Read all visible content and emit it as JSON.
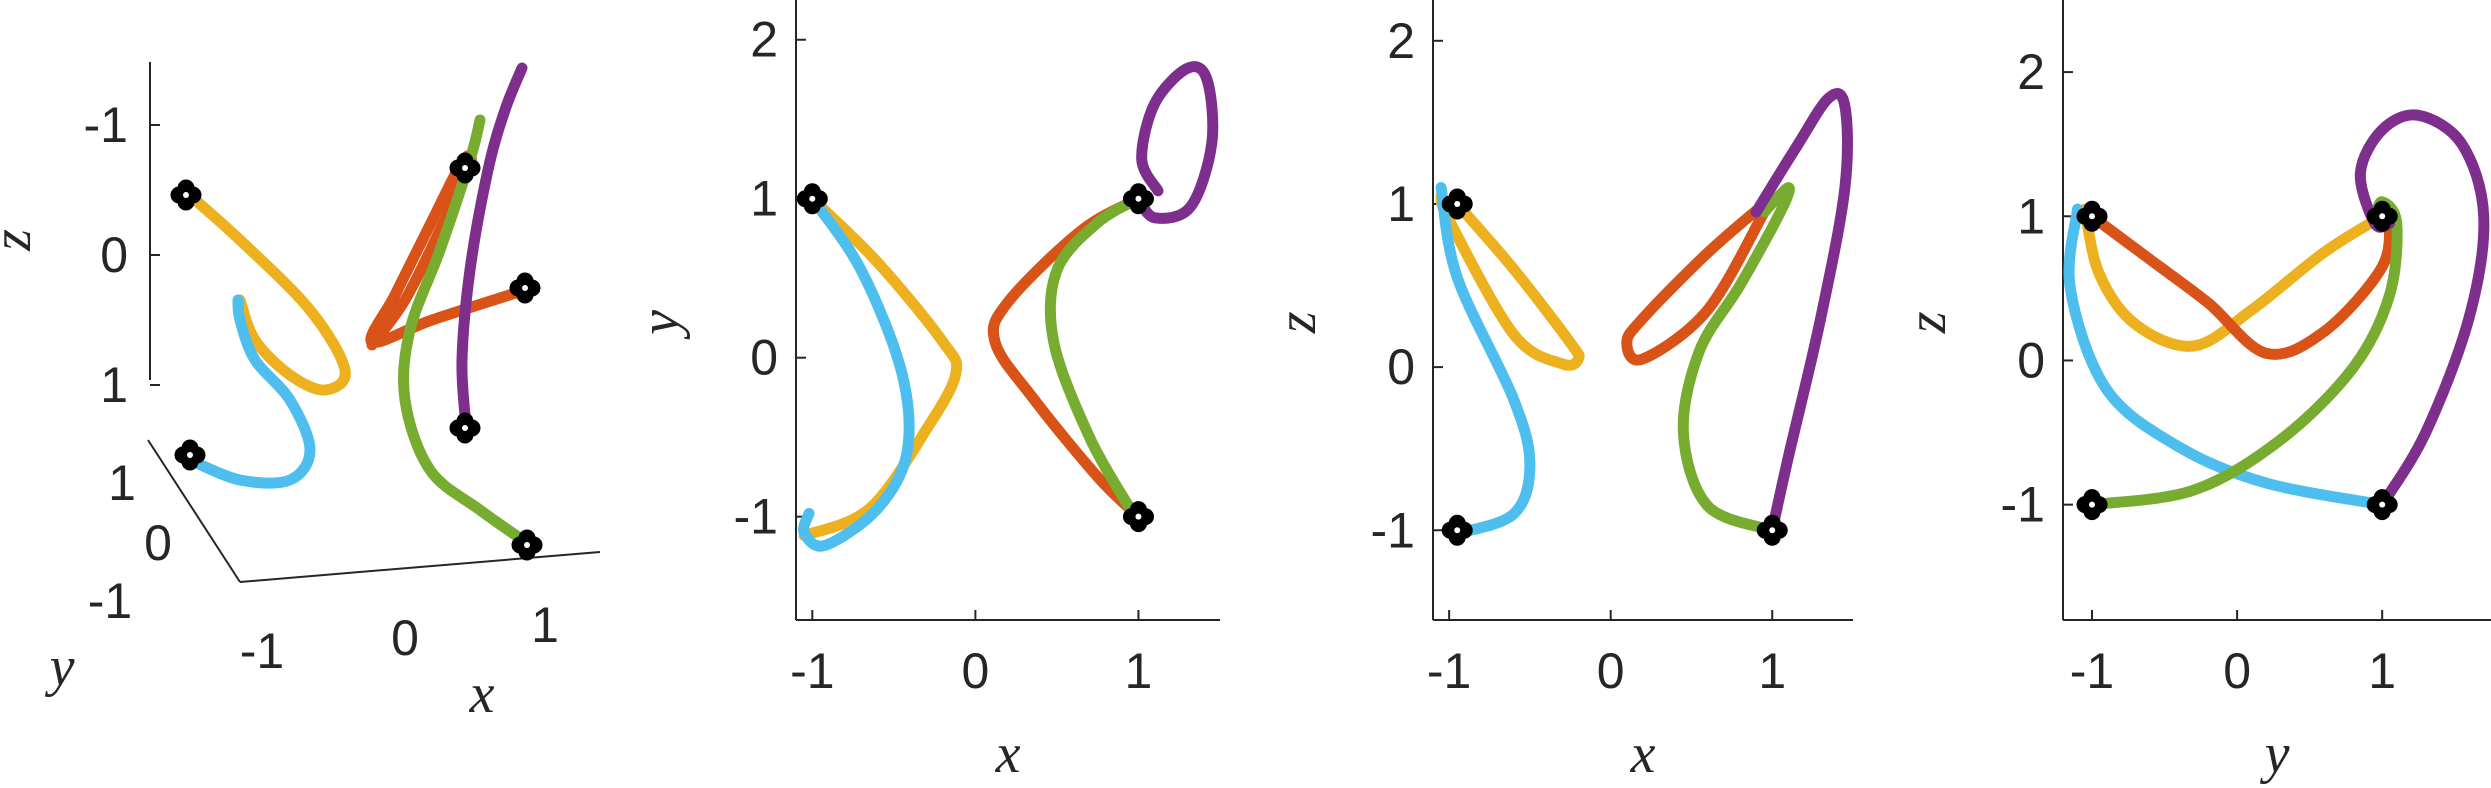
{
  "colors": {
    "orange": "#EDB120",
    "red": "#D95319",
    "purple": "#7E2F8E",
    "green": "#77AC30",
    "cyan": "#4DBEEE",
    "marker": "#000000",
    "axis": "#262626"
  },
  "chart_data": [
    {
      "type": "line",
      "view": "3d",
      "xlabel": "x",
      "ylabel": "y",
      "zlabel": "z",
      "xticks": [
        "-1",
        "0",
        "1"
      ],
      "yticks": [
        "-1",
        "0",
        "1"
      ],
      "zticks": [
        "-1",
        "0",
        "1"
      ],
      "series": [
        {
          "color": "orange",
          "points": [
            [
              -1,
              1,
              1
            ],
            [
              -0.6,
              0.6,
              0.6
            ],
            [
              -0.2,
              0.1,
              0.1
            ],
            [
              -0.4,
              -0.4,
              -0.1
            ],
            [
              -0.6,
              -0.8,
              0.2
            ],
            [
              -0.9,
              -1.05,
              0.7
            ]
          ]
        },
        {
          "color": "cyan",
          "points": [
            [
              -1,
              -1,
              -1
            ],
            [
              -0.6,
              -0.6,
              -0.9
            ],
            [
              -0.3,
              -0.2,
              -0.7
            ],
            [
              -0.5,
              0.3,
              -0.2
            ],
            [
              -0.8,
              0.8,
              0.4
            ],
            [
              -1.0,
              1.1,
              0.95
            ]
          ]
        },
        {
          "color": "red",
          "points": [
            [
              1,
              1,
              1
            ],
            [
              0.5,
              0.4,
              0.5
            ],
            [
              0.15,
              0.1,
              0.1
            ],
            [
              0.4,
              0.2,
              0.4
            ],
            [
              0.8,
              0.6,
              0.7
            ],
            [
              1,
              -1,
              1
            ]
          ]
        },
        {
          "color": "green",
          "points": [
            [
              1,
              -1,
              -1
            ],
            [
              0.6,
              -0.6,
              -0.6
            ],
            [
              0.4,
              0.2,
              -0.3
            ],
            [
              0.6,
              0.8,
              0.4
            ],
            [
              1.0,
              1.1,
              0.9
            ],
            [
              1.1,
              1.2,
              1.1
            ]
          ]
        },
        {
          "color": "purple",
          "points": [
            [
              1,
              -1,
              -1
            ],
            [
              1.1,
              0.0,
              0.0
            ],
            [
              1.3,
              0.9,
              0.9
            ],
            [
              1.5,
              1.5,
              1.5
            ]
          ]
        }
      ],
      "markers": [
        [
          -1,
          1,
          1
        ],
        [
          -1,
          -1,
          -1
        ],
        [
          1,
          1,
          1
        ],
        [
          1,
          -1,
          1
        ],
        [
          1,
          -1,
          -1
        ],
        [
          1,
          1,
          -1
        ]
      ]
    },
    {
      "type": "line",
      "view": "xy",
      "xlabel": "x",
      "ylabel": "y",
      "xlim": [
        -1.1,
        1.5
      ],
      "ylim": [
        -1.65,
        2.25
      ],
      "xticks": [
        -1,
        0,
        1
      ],
      "yticks": [
        -1,
        0,
        1,
        2
      ],
      "series": [
        {
          "color": "orange",
          "points": [
            [
              -1,
              1
            ],
            [
              -0.6,
              0.6
            ],
            [
              -0.2,
              0.1
            ],
            [
              -0.12,
              -0.1
            ],
            [
              -0.3,
              -0.45
            ],
            [
              -0.65,
              -0.95
            ],
            [
              -1.05,
              -1.12
            ]
          ]
        },
        {
          "color": "cyan",
          "points": [
            [
              -1,
              1
            ],
            [
              -0.7,
              0.55
            ],
            [
              -0.45,
              -0.1
            ],
            [
              -0.42,
              -0.6
            ],
            [
              -0.6,
              -0.95
            ],
            [
              -0.92,
              -1.18
            ],
            [
              -1.05,
              -1.1
            ],
            [
              -1.02,
              -0.98
            ]
          ]
        },
        {
          "color": "red",
          "points": [
            [
              1,
              1
            ],
            [
              0.65,
              0.8
            ],
            [
              0.2,
              0.35
            ],
            [
              0.12,
              0.1
            ],
            [
              0.35,
              -0.25
            ],
            [
              0.75,
              -0.75
            ],
            [
              1,
              -1
            ]
          ]
        },
        {
          "color": "green",
          "points": [
            [
              1,
              1
            ],
            [
              0.75,
              0.85
            ],
            [
              0.5,
              0.55
            ],
            [
              0.48,
              0.1
            ],
            [
              0.7,
              -0.5
            ],
            [
              0.95,
              -0.95
            ],
            [
              1,
              -1
            ]
          ]
        },
        {
          "color": "purple",
          "points": [
            [
              1,
              1
            ],
            [
              1.1,
              0.88
            ],
            [
              1.32,
              0.95
            ],
            [
              1.45,
              1.35
            ],
            [
              1.42,
              1.75
            ],
            [
              1.3,
              1.82
            ],
            [
              1.1,
              1.6
            ],
            [
              1.02,
              1.25
            ],
            [
              1.12,
              1.05
            ]
          ]
        }
      ],
      "markers": [
        [
          -1,
          1
        ],
        [
          1,
          1
        ],
        [
          1,
          -1
        ]
      ]
    },
    {
      "type": "line",
      "view": "xz",
      "xlabel": "x",
      "ylabel": "z",
      "xlim": [
        -1.1,
        1.5
      ],
      "ylim": [
        -1.55,
        2.25
      ],
      "xticks": [
        -1,
        0,
        1
      ],
      "yticks": [
        -1,
        0,
        1,
        2
      ],
      "series": [
        {
          "color": "orange",
          "points": [
            [
              -0.95,
              1
            ],
            [
              -0.6,
              0.6
            ],
            [
              -0.25,
              0.15
            ],
            [
              -0.2,
              0.05
            ],
            [
              -0.3,
              0.02
            ],
            [
              -0.6,
              0.2
            ],
            [
              -1.0,
              0.9
            ],
            [
              -1.05,
              1.05
            ]
          ]
        },
        {
          "color": "cyan",
          "points": [
            [
              -1.05,
              1.1
            ],
            [
              -0.95,
              0.55
            ],
            [
              -0.6,
              -0.2
            ],
            [
              -0.5,
              -0.6
            ],
            [
              -0.6,
              -0.9
            ],
            [
              -0.95,
              -1.02
            ]
          ]
        },
        {
          "color": "red",
          "points": [
            [
              0.95,
              1.0
            ],
            [
              0.6,
              0.7
            ],
            [
              0.2,
              0.3
            ],
            [
              0.1,
              0.15
            ],
            [
              0.2,
              0.05
            ],
            [
              0.6,
              0.35
            ],
            [
              0.95,
              0.95
            ]
          ]
        },
        {
          "color": "green",
          "points": [
            [
              1,
              -1
            ],
            [
              0.6,
              -0.85
            ],
            [
              0.45,
              -0.4
            ],
            [
              0.55,
              0.1
            ],
            [
              0.8,
              0.5
            ],
            [
              1.05,
              0.95
            ],
            [
              1.1,
              1.1
            ],
            [
              0.95,
              0.95
            ]
          ]
        },
        {
          "color": "purple",
          "points": [
            [
              1,
              -1
            ],
            [
              1.1,
              -0.55
            ],
            [
              1.3,
              0.3
            ],
            [
              1.45,
              1.1
            ],
            [
              1.45,
              1.6
            ],
            [
              1.35,
              1.65
            ],
            [
              1.15,
              1.35
            ],
            [
              0.9,
              0.95
            ]
          ]
        }
      ],
      "markers": [
        [
          -0.95,
          1
        ],
        [
          -0.95,
          -1
        ],
        [
          1,
          -1
        ]
      ]
    },
    {
      "type": "line",
      "view": "yz",
      "xlabel": "y",
      "ylabel": "z",
      "xlim": [
        -1.2,
        1.75
      ],
      "ylim": [
        -1.8,
        2.5
      ],
      "xticks": [
        -1,
        0,
        1
      ],
      "yticks": [
        -1,
        0,
        1,
        2
      ],
      "series": [
        {
          "color": "orange",
          "points": [
            [
              -1.05,
              1.05
            ],
            [
              -0.95,
              0.6
            ],
            [
              -0.7,
              0.25
            ],
            [
              -0.3,
              0.1
            ],
            [
              0.1,
              0.35
            ],
            [
              0.6,
              0.75
            ],
            [
              1.0,
              1.0
            ]
          ]
        },
        {
          "color": "red",
          "points": [
            [
              -1,
              1
            ],
            [
              -0.6,
              0.7
            ],
            [
              -0.2,
              0.4
            ],
            [
              0.2,
              0.05
            ],
            [
              0.6,
              0.2
            ],
            [
              1.0,
              0.65
            ],
            [
              1.05,
              1.0
            ]
          ]
        },
        {
          "color": "cyan",
          "points": [
            [
              -1.1,
              1.05
            ],
            [
              -1.15,
              0.5
            ],
            [
              -0.9,
              -0.2
            ],
            [
              -0.4,
              -0.6
            ],
            [
              0.2,
              -0.85
            ],
            [
              1,
              -1
            ]
          ]
        },
        {
          "color": "green",
          "points": [
            [
              -1,
              -1
            ],
            [
              -0.3,
              -0.9
            ],
            [
              0.3,
              -0.55
            ],
            [
              0.8,
              -0.05
            ],
            [
              1.05,
              0.45
            ],
            [
              1.1,
              0.95
            ],
            [
              1.0,
              1.1
            ],
            [
              0.95,
              1.0
            ]
          ]
        },
        {
          "color": "purple",
          "points": [
            [
              1,
              -1
            ],
            [
              1.3,
              -0.5
            ],
            [
              1.6,
              0.3
            ],
            [
              1.7,
              1.0
            ],
            [
              1.55,
              1.5
            ],
            [
              1.25,
              1.7
            ],
            [
              1.0,
              1.6
            ],
            [
              0.85,
              1.3
            ],
            [
              0.95,
              0.95
            ],
            [
              1.05,
              0.95
            ]
          ]
        }
      ],
      "markers": [
        [
          -1,
          1
        ],
        [
          -1,
          -1
        ],
        [
          1,
          -1
        ],
        [
          1,
          1
        ]
      ]
    }
  ]
}
